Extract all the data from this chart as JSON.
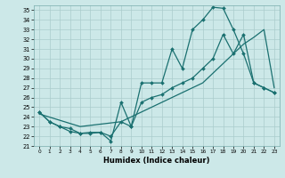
{
  "xlabel": "Humidex (Indice chaleur)",
  "bg_color": "#cce8e8",
  "grid_color": "#aacccc",
  "line_color": "#1a7070",
  "xlim": [
    -0.5,
    23.5
  ],
  "ylim": [
    21,
    35.5
  ],
  "xticks": [
    0,
    1,
    2,
    3,
    4,
    5,
    6,
    7,
    8,
    9,
    10,
    11,
    12,
    13,
    14,
    15,
    16,
    17,
    18,
    19,
    20,
    21,
    22,
    23
  ],
  "yticks": [
    21,
    22,
    23,
    24,
    25,
    26,
    27,
    28,
    29,
    30,
    31,
    32,
    33,
    34,
    35
  ],
  "lineA_x": [
    0,
    1,
    2,
    3,
    4,
    5,
    6,
    7,
    8,
    9,
    10,
    11,
    12,
    13,
    14,
    15,
    16,
    17,
    18,
    19,
    20,
    21,
    22,
    23
  ],
  "lineA_y": [
    24.5,
    23.5,
    23.0,
    22.5,
    22.3,
    22.4,
    22.4,
    21.5,
    25.5,
    23.0,
    27.5,
    27.5,
    27.5,
    31.0,
    29.0,
    33.0,
    34.0,
    35.3,
    35.2,
    33.0,
    30.5,
    27.5,
    27.0,
    26.5
  ],
  "lineB_x": [
    0,
    1,
    2,
    3,
    4,
    5,
    6,
    7,
    8,
    9,
    10,
    11,
    12,
    13,
    14,
    15,
    16,
    17,
    18,
    19,
    20,
    21,
    22,
    23
  ],
  "lineB_y": [
    24.5,
    23.5,
    23.0,
    22.8,
    22.3,
    22.3,
    22.4,
    22.0,
    23.5,
    23.0,
    25.5,
    26.0,
    26.3,
    27.0,
    27.5,
    28.0,
    29.0,
    30.0,
    32.5,
    30.5,
    32.5,
    27.5,
    27.0,
    26.5
  ],
  "lineC_x": [
    0,
    4,
    8,
    12,
    16,
    18,
    19,
    20,
    21,
    22,
    23
  ],
  "lineC_y": [
    24.3,
    23.0,
    23.5,
    25.5,
    27.5,
    29.5,
    30.5,
    31.5,
    32.2,
    33.0,
    27.0
  ]
}
